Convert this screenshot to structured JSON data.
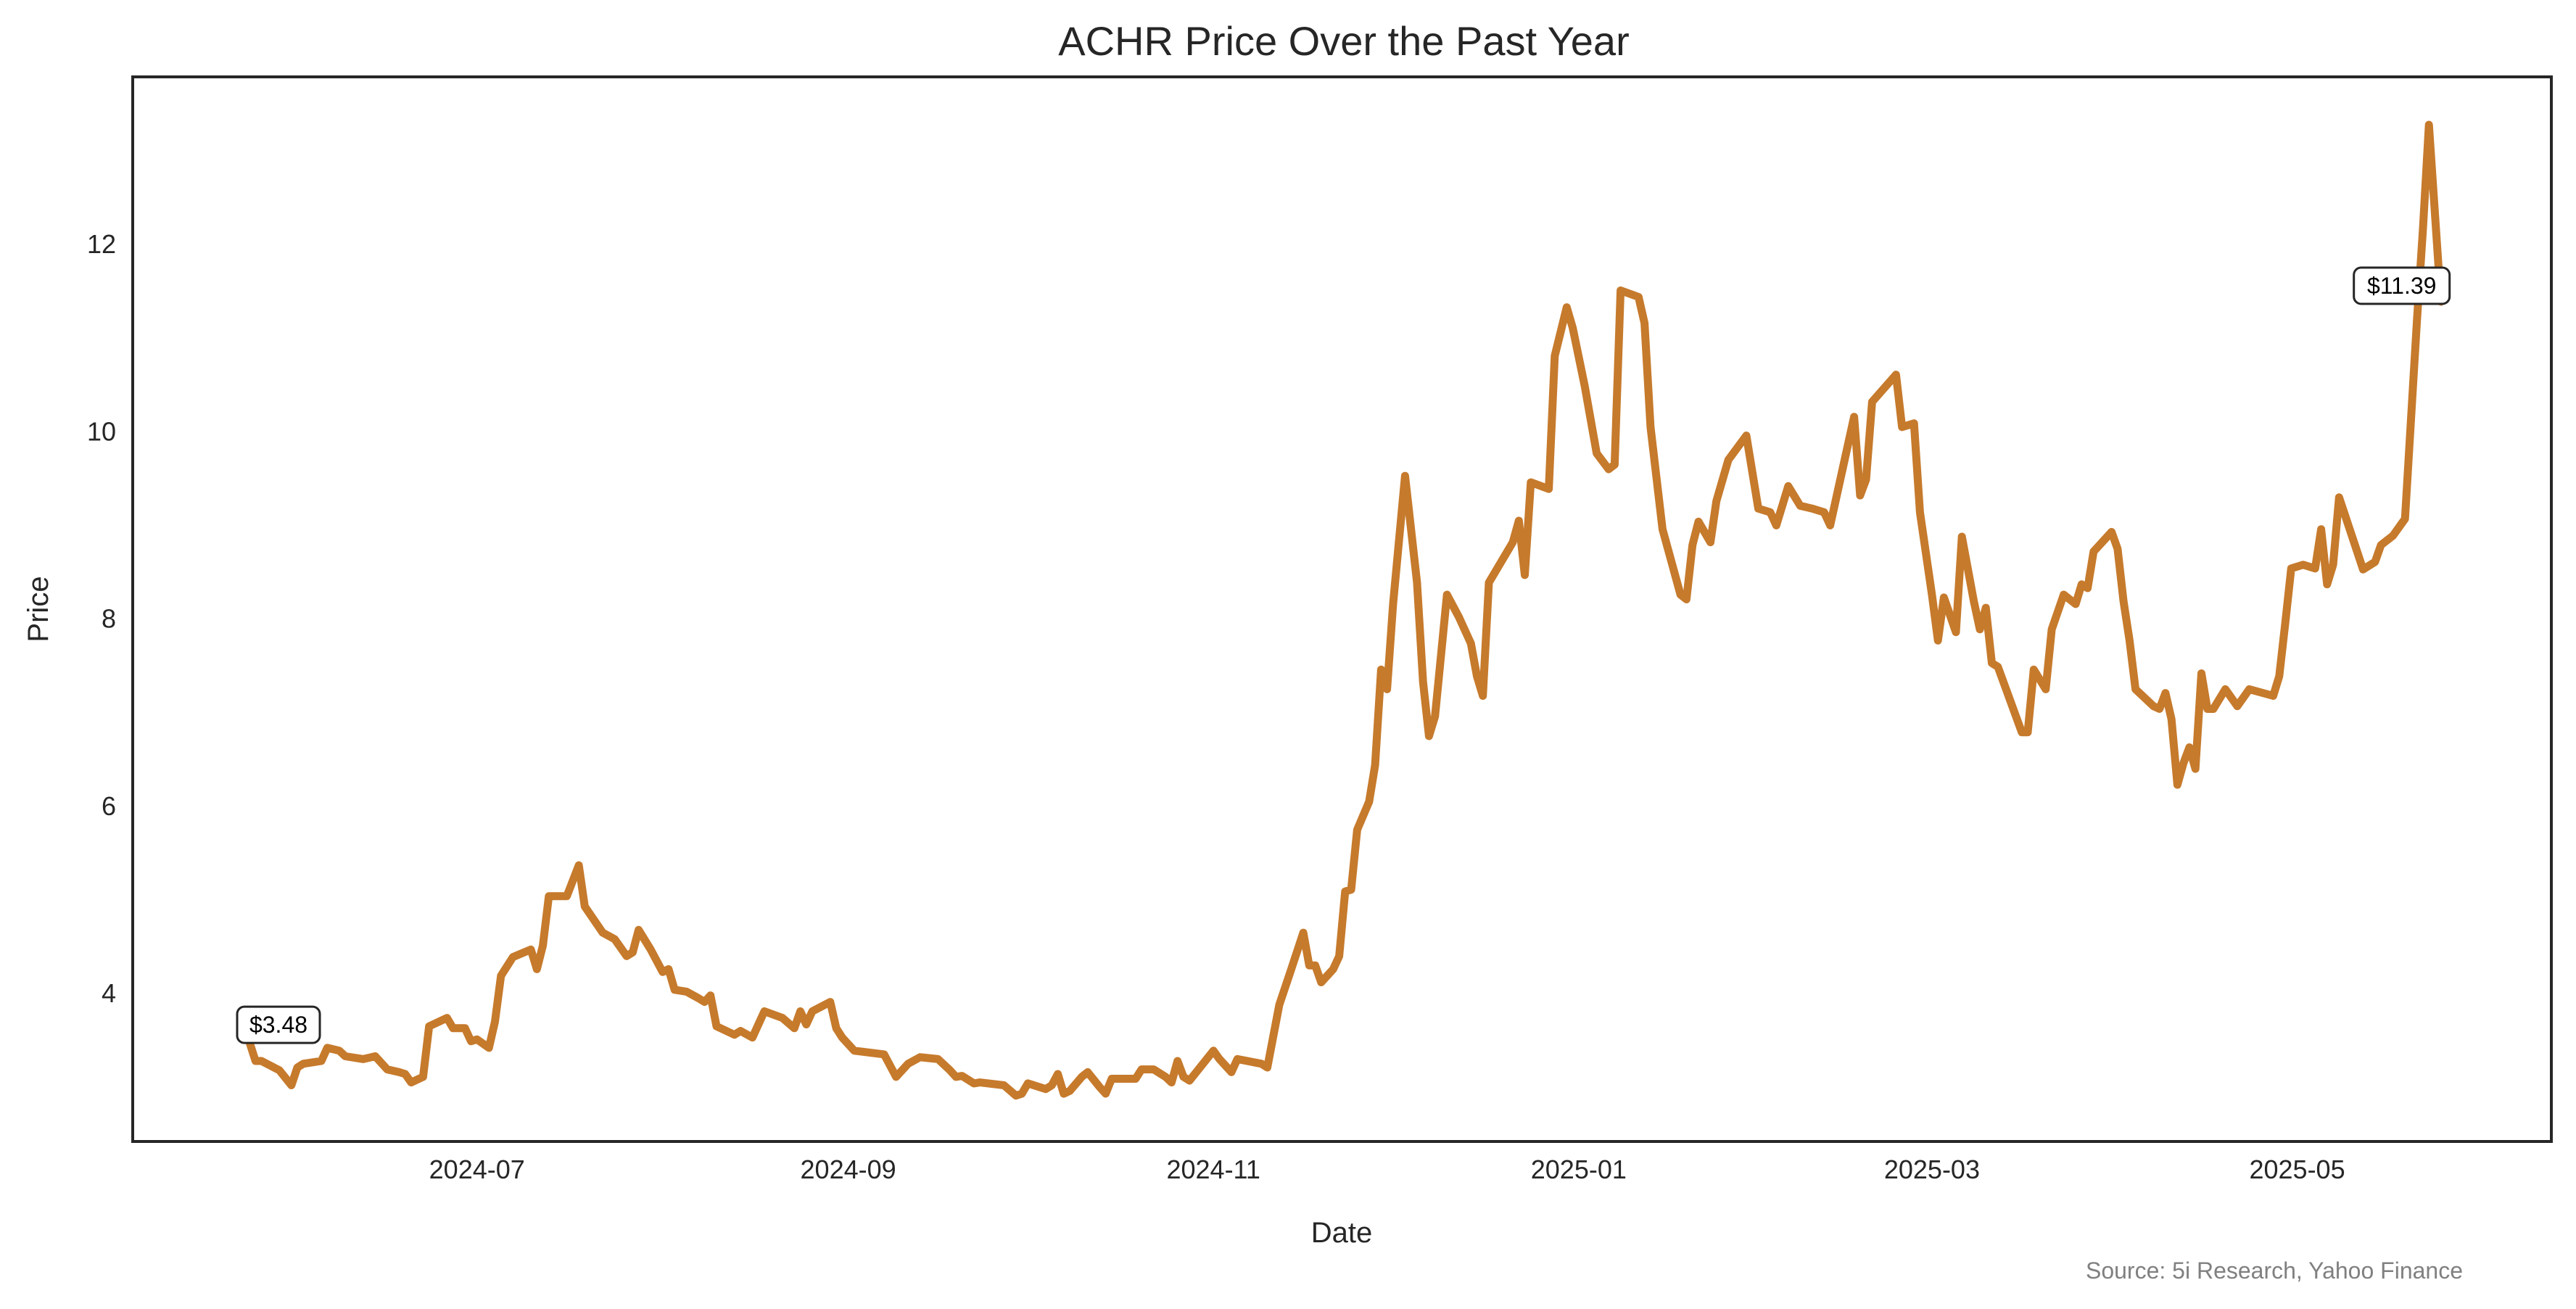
{
  "chart_data": {
    "type": "line",
    "title": "ACHR Price Over the Past Year",
    "xlabel": "Date",
    "ylabel": "Price",
    "source": "Source: 5i Research, Yahoo Finance",
    "start_date": "2024-05-24",
    "x_unit": "days since start_date",
    "ylim": [
      2.4,
      13.8
    ],
    "grid": false,
    "line_color": "#C67A2C",
    "y_ticks": [
      4,
      6,
      8,
      10,
      12
    ],
    "y_tick_labels": [
      "4",
      "6",
      "8",
      "10",
      "12"
    ],
    "x_ticks": [
      "2024-07-01",
      "2024-09-01",
      "2024-11-01",
      "2025-01-01",
      "2025-03-01",
      "2025-05-01"
    ],
    "x_tick_labels": [
      "2024-07",
      "2024-09",
      "2024-11",
      "2025-01",
      "2025-03",
      "2025-05"
    ],
    "annotations": [
      {
        "label": "$3.48",
        "point": "first"
      },
      {
        "label": "$11.39",
        "point": "last"
      }
    ],
    "series": [
      {
        "name": "ACHR",
        "points": [
          [
            0,
            3.48
          ],
          [
            1,
            3.28
          ],
          [
            2,
            3.28
          ],
          [
            5,
            3.18
          ],
          [
            7,
            3.02
          ],
          [
            8,
            3.21
          ],
          [
            9,
            3.25
          ],
          [
            12,
            3.28
          ],
          [
            13,
            3.42
          ],
          [
            15,
            3.39
          ],
          [
            16,
            3.33
          ],
          [
            19,
            3.3
          ],
          [
            21,
            3.33
          ],
          [
            23,
            3.19
          ],
          [
            25,
            3.16
          ],
          [
            26,
            3.14
          ],
          [
            27,
            3.05
          ],
          [
            29,
            3.11
          ],
          [
            30,
            3.65
          ],
          [
            33,
            3.74
          ],
          [
            34,
            3.63
          ],
          [
            36,
            3.63
          ],
          [
            37,
            3.49
          ],
          [
            38,
            3.51
          ],
          [
            40,
            3.42
          ],
          [
            41,
            3.7
          ],
          [
            42,
            4.19
          ],
          [
            44,
            4.39
          ],
          [
            47,
            4.47
          ],
          [
            48,
            4.26
          ],
          [
            49,
            4.51
          ],
          [
            50,
            5.04
          ],
          [
            53,
            5.04
          ],
          [
            55,
            5.37
          ],
          [
            56,
            4.93
          ],
          [
            59,
            4.65
          ],
          [
            61,
            4.58
          ],
          [
            63,
            4.4
          ],
          [
            64,
            4.44
          ],
          [
            65,
            4.68
          ],
          [
            67,
            4.47
          ],
          [
            69,
            4.23
          ],
          [
            70,
            4.26
          ],
          [
            71,
            4.04
          ],
          [
            73,
            4.02
          ],
          [
            75,
            3.95
          ],
          [
            76,
            3.91
          ],
          [
            77,
            3.98
          ],
          [
            78,
            3.65
          ],
          [
            81,
            3.56
          ],
          [
            82,
            3.6
          ],
          [
            84,
            3.53
          ],
          [
            86,
            3.81
          ],
          [
            89,
            3.74
          ],
          [
            91,
            3.63
          ],
          [
            92,
            3.81
          ],
          [
            93,
            3.67
          ],
          [
            94,
            3.81
          ],
          [
            97,
            3.91
          ],
          [
            98,
            3.63
          ],
          [
            99,
            3.53
          ],
          [
            101,
            3.39
          ],
          [
            106,
            3.35
          ],
          [
            108,
            3.11
          ],
          [
            110,
            3.25
          ],
          [
            112,
            3.32
          ],
          [
            115,
            3.3
          ],
          [
            117,
            3.18
          ],
          [
            118,
            3.11
          ],
          [
            119,
            3.12
          ],
          [
            121,
            3.04
          ],
          [
            122,
            3.05
          ],
          [
            126,
            3.02
          ],
          [
            128,
            2.91
          ],
          [
            129,
            2.93
          ],
          [
            130,
            3.04
          ],
          [
            133,
            2.98
          ],
          [
            134,
            3.02
          ],
          [
            135,
            3.14
          ],
          [
            136,
            2.93
          ],
          [
            137,
            2.96
          ],
          [
            139,
            3.11
          ],
          [
            140,
            3.16
          ],
          [
            142,
            3.0
          ],
          [
            143,
            2.93
          ],
          [
            144,
            3.09
          ],
          [
            148,
            3.09
          ],
          [
            149,
            3.19
          ],
          [
            151,
            3.19
          ],
          [
            153,
            3.11
          ],
          [
            154,
            3.05
          ],
          [
            155,
            3.28
          ],
          [
            156,
            3.11
          ],
          [
            157,
            3.07
          ],
          [
            161,
            3.39
          ],
          [
            162,
            3.3
          ],
          [
            164,
            3.16
          ],
          [
            165,
            3.3
          ],
          [
            169,
            3.25
          ],
          [
            170,
            3.21
          ],
          [
            172,
            3.88
          ],
          [
            174,
            4.26
          ],
          [
            176,
            4.65
          ],
          [
            177,
            4.3
          ],
          [
            178,
            4.3
          ],
          [
            179,
            4.12
          ],
          [
            181,
            4.26
          ],
          [
            182,
            4.4
          ],
          [
            183,
            5.09
          ],
          [
            184,
            5.11
          ],
          [
            185,
            5.75
          ],
          [
            187,
            6.05
          ],
          [
            188,
            6.44
          ],
          [
            189,
            7.46
          ],
          [
            190,
            7.25
          ],
          [
            191,
            8.16
          ],
          [
            193,
            9.53
          ],
          [
            195,
            8.39
          ],
          [
            196,
            7.33
          ],
          [
            197,
            6.75
          ],
          [
            198,
            6.96
          ],
          [
            200,
            8.26
          ],
          [
            202,
            8.02
          ],
          [
            204,
            7.74
          ],
          [
            205,
            7.39
          ],
          [
            206,
            7.18
          ],
          [
            207,
            8.39
          ],
          [
            211,
            8.82
          ],
          [
            212,
            9.05
          ],
          [
            213,
            8.47
          ],
          [
            214,
            9.46
          ],
          [
            217,
            9.39
          ],
          [
            218,
            10.81
          ],
          [
            220,
            11.33
          ],
          [
            221,
            11.11
          ],
          [
            223,
            10.49
          ],
          [
            225,
            9.77
          ],
          [
            227,
            9.6
          ],
          [
            228,
            9.65
          ],
          [
            229,
            11.51
          ],
          [
            232,
            11.44
          ],
          [
            233,
            11.16
          ],
          [
            234,
            10.05
          ],
          [
            236,
            8.96
          ],
          [
            239,
            8.26
          ],
          [
            240,
            8.21
          ],
          [
            241,
            8.79
          ],
          [
            242,
            9.04
          ],
          [
            244,
            8.82
          ],
          [
            245,
            9.26
          ],
          [
            247,
            9.7
          ],
          [
            250,
            9.96
          ],
          [
            252,
            9.18
          ],
          [
            254,
            9.14
          ],
          [
            255,
            9.0
          ],
          [
            257,
            9.42
          ],
          [
            259,
            9.21
          ],
          [
            261,
            9.18
          ],
          [
            263,
            9.14
          ],
          [
            264,
            9.0
          ],
          [
            268,
            10.16
          ],
          [
            269,
            9.32
          ],
          [
            270,
            9.49
          ],
          [
            271,
            10.32
          ],
          [
            275,
            10.61
          ],
          [
            276,
            10.05
          ],
          [
            278,
            10.09
          ],
          [
            279,
            9.14
          ],
          [
            281,
            8.26
          ],
          [
            282,
            7.77
          ],
          [
            283,
            8.23
          ],
          [
            285,
            7.86
          ],
          [
            286,
            8.88
          ],
          [
            288,
            8.19
          ],
          [
            289,
            7.89
          ],
          [
            290,
            8.12
          ],
          [
            291,
            7.53
          ],
          [
            292,
            7.49
          ],
          [
            296,
            6.79
          ],
          [
            297,
            6.79
          ],
          [
            298,
            7.46
          ],
          [
            300,
            7.25
          ],
          [
            301,
            7.89
          ],
          [
            303,
            8.26
          ],
          [
            305,
            8.16
          ],
          [
            306,
            8.37
          ],
          [
            307,
            8.33
          ],
          [
            308,
            8.72
          ],
          [
            311,
            8.93
          ],
          [
            312,
            8.75
          ],
          [
            313,
            8.19
          ],
          [
            314,
            7.77
          ],
          [
            315,
            7.25
          ],
          [
            318,
            7.07
          ],
          [
            319,
            7.04
          ],
          [
            320,
            7.21
          ],
          [
            321,
            6.93
          ],
          [
            322,
            6.23
          ],
          [
            323,
            6.46
          ],
          [
            324,
            6.63
          ],
          [
            325,
            6.4
          ],
          [
            326,
            7.42
          ],
          [
            327,
            7.04
          ],
          [
            328,
            7.04
          ],
          [
            330,
            7.25
          ],
          [
            332,
            7.07
          ],
          [
            334,
            7.25
          ],
          [
            338,
            7.18
          ],
          [
            339,
            7.39
          ],
          [
            340,
            7.95
          ],
          [
            341,
            8.54
          ],
          [
            343,
            8.58
          ],
          [
            345,
            8.54
          ],
          [
            346,
            8.96
          ],
          [
            347,
            8.37
          ],
          [
            348,
            8.58
          ],
          [
            349,
            9.3
          ],
          [
            353,
            8.53
          ],
          [
            355,
            8.61
          ],
          [
            356,
            8.79
          ],
          [
            358,
            8.89
          ],
          [
            360,
            9.07
          ],
          [
            362,
            11.19
          ],
          [
            363,
            12.16
          ],
          [
            364,
            13.28
          ],
          [
            366,
            11.39
          ]
        ]
      }
    ]
  }
}
